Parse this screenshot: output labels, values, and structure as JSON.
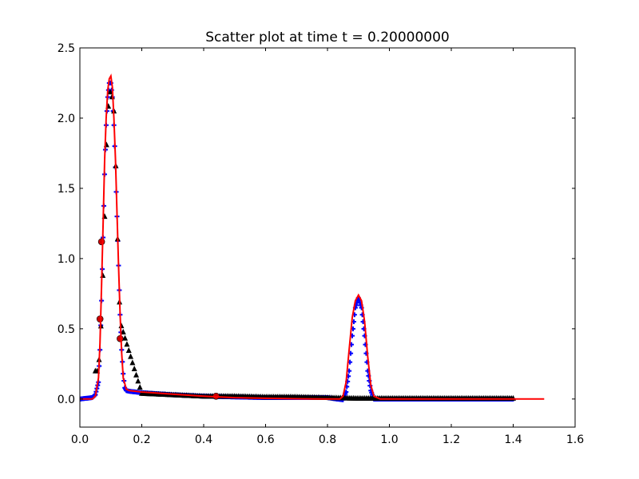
{
  "chart_data": {
    "type": "scatter",
    "title": "Scatter plot at time t =      0.20000000",
    "xlabel": "",
    "ylabel": "",
    "xlim": [
      0.0,
      1.6
    ],
    "ylim": [
      -0.2,
      2.5
    ],
    "x_ticks": [
      "0.0",
      "0.2",
      "0.4",
      "0.6",
      "0.8",
      "1.0",
      "1.2",
      "1.4",
      "1.6"
    ],
    "y_ticks": [
      "0.0",
      "0.5",
      "1.0",
      "1.5",
      "2.0",
      "2.5"
    ],
    "grid": false,
    "legend": "none",
    "series": [
      {
        "marker": "plus",
        "color": "#0000ff",
        "x_range": [
          0.0,
          1.4
        ],
        "x": [
          0.0,
          0.02,
          0.04,
          0.05,
          0.06,
          0.065,
          0.07,
          0.075,
          0.08,
          0.085,
          0.09,
          0.095,
          0.1,
          0.105,
          0.11,
          0.115,
          0.12,
          0.125,
          0.13,
          0.135,
          0.14,
          0.145,
          0.15,
          0.16,
          0.2,
          0.3,
          0.4,
          0.5,
          0.6,
          0.7,
          0.8,
          0.83,
          0.85,
          0.86,
          0.87,
          0.88,
          0.89,
          0.9,
          0.91,
          0.92,
          0.93,
          0.94,
          0.95,
          0.97,
          1.0,
          1.1,
          1.2,
          1.3,
          1.4
        ],
        "y": [
          0.0,
          0.005,
          0.01,
          0.03,
          0.12,
          0.35,
          0.7,
          1.15,
          1.6,
          1.95,
          2.15,
          2.25,
          2.25,
          2.15,
          1.95,
          1.65,
          1.3,
          0.95,
          0.6,
          0.35,
          0.18,
          0.08,
          0.06,
          0.055,
          0.045,
          0.03,
          0.02,
          0.015,
          0.01,
          0.01,
          0.01,
          0.0,
          -0.005,
          0.05,
          0.2,
          0.45,
          0.65,
          0.72,
          0.65,
          0.45,
          0.2,
          0.06,
          0.0,
          0.0,
          0.0,
          0.0,
          0.0,
          0.0,
          0.0
        ]
      },
      {
        "marker": "triangle",
        "color": "#000000",
        "x_range": [
          0.05,
          1.4
        ],
        "x": [
          0.06,
          0.07,
          0.08,
          0.085,
          0.09,
          0.1,
          0.11,
          0.115,
          0.12,
          0.125,
          0.13,
          0.2,
          0.3,
          0.4,
          0.5,
          0.6,
          0.7,
          0.8,
          0.9,
          1.0,
          1.1,
          1.2,
          1.3,
          1.4
        ],
        "y": [
          0.2,
          0.6,
          1.3,
          1.75,
          2.05,
          2.22,
          2.05,
          1.75,
          1.3,
          0.9,
          0.55,
          0.04,
          0.03,
          0.02,
          0.02,
          0.015,
          0.015,
          0.01,
          0.005,
          0.005,
          0.005,
          0.005,
          0.005,
          0.005
        ]
      },
      {
        "marker": "circle",
        "color": "#cc0000",
        "x_range": [
          0.06,
          0.44
        ],
        "x": [
          0.065,
          0.07,
          0.13,
          0.44
        ],
        "y": [
          0.57,
          1.12,
          0.43,
          0.02
        ]
      },
      {
        "marker": "line",
        "color": "#ff0000",
        "x_range": [
          0.0,
          1.5
        ],
        "x": [
          0.0,
          0.04,
          0.05,
          0.06,
          0.065,
          0.07,
          0.075,
          0.08,
          0.085,
          0.09,
          0.095,
          0.1,
          0.105,
          0.11,
          0.115,
          0.12,
          0.125,
          0.13,
          0.135,
          0.14,
          0.15,
          0.16,
          0.2,
          0.3,
          0.4,
          0.5,
          0.6,
          0.7,
          0.8,
          0.84,
          0.85,
          0.86,
          0.87,
          0.88,
          0.89,
          0.9,
          0.91,
          0.92,
          0.93,
          0.94,
          0.95,
          0.97,
          1.0,
          1.1,
          1.2,
          1.3,
          1.4,
          1.5
        ],
        "y": [
          0.0,
          0.0,
          0.02,
          0.15,
          0.4,
          0.8,
          1.25,
          1.7,
          2.0,
          2.2,
          2.28,
          2.3,
          2.22,
          2.0,
          1.7,
          1.32,
          0.95,
          0.6,
          0.33,
          0.15,
          0.07,
          0.06,
          0.05,
          0.035,
          0.02,
          0.01,
          0.005,
          0.002,
          0.0,
          0.0,
          0.02,
          0.12,
          0.35,
          0.58,
          0.7,
          0.74,
          0.7,
          0.55,
          0.3,
          0.1,
          0.02,
          0.0,
          0.0,
          0.0,
          0.0,
          0.0,
          0.0,
          0.0
        ]
      }
    ]
  }
}
